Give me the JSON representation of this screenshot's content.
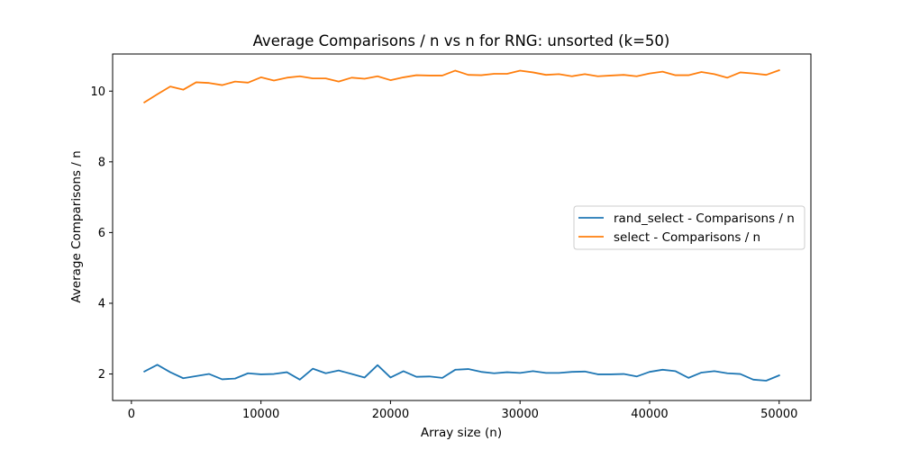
{
  "chart_data": {
    "type": "line",
    "title": "Average Comparisons / n vs n for RNG: unsorted (k=50)",
    "xlabel": "Array size (n)",
    "ylabel": "Average Comparisons / n",
    "xlim": [
      -1450,
      52450
    ],
    "ylim": [
      1.25,
      11.05
    ],
    "xticks": [
      0,
      10000,
      20000,
      30000,
      40000,
      50000
    ],
    "xtick_labels": [
      "0",
      "10000",
      "20000",
      "30000",
      "40000",
      "50000"
    ],
    "yticks": [
      2,
      4,
      6,
      8,
      10
    ],
    "ytick_labels": [
      "2",
      "4",
      "6",
      "8",
      "10"
    ],
    "grid": false,
    "legend_position": "center-right",
    "x": [
      1000,
      2000,
      3000,
      4000,
      5000,
      6000,
      7000,
      8000,
      9000,
      10000,
      11000,
      12000,
      13000,
      14000,
      15000,
      16000,
      17000,
      18000,
      19000,
      20000,
      21000,
      22000,
      23000,
      24000,
      25000,
      26000,
      27000,
      28000,
      29000,
      30000,
      31000,
      32000,
      33000,
      34000,
      35000,
      36000,
      37000,
      38000,
      39000,
      40000,
      41000,
      42000,
      43000,
      44000,
      45000,
      46000,
      47000,
      48000,
      49000,
      50000
    ],
    "series": [
      {
        "name": "rand_select - Comparisons / n",
        "color": "#1f77b4",
        "values": [
          2.07,
          2.26,
          2.05,
          1.88,
          1.94,
          2.0,
          1.85,
          1.87,
          2.02,
          1.99,
          2.0,
          2.05,
          1.84,
          2.15,
          2.02,
          2.1,
          2.0,
          1.9,
          2.25,
          1.9,
          2.08,
          1.92,
          1.93,
          1.89,
          2.12,
          2.14,
          2.06,
          2.02,
          2.05,
          2.03,
          2.08,
          2.03,
          2.03,
          2.06,
          2.07,
          1.99,
          1.99,
          2.0,
          1.93,
          2.06,
          2.12,
          2.08,
          1.89,
          2.04,
          2.08,
          2.02,
          2.0,
          1.84,
          1.81,
          1.96
        ]
      },
      {
        "name": "select - Comparisons / n",
        "color": "#ff7f0e",
        "values": [
          9.68,
          9.91,
          10.13,
          10.04,
          10.25,
          10.23,
          10.17,
          10.27,
          10.24,
          10.39,
          10.3,
          10.38,
          10.42,
          10.36,
          10.36,
          10.27,
          10.38,
          10.35,
          10.42,
          10.31,
          10.39,
          10.45,
          10.44,
          10.44,
          10.58,
          10.46,
          10.45,
          10.49,
          10.49,
          10.58,
          10.53,
          10.46,
          10.48,
          10.42,
          10.48,
          10.42,
          10.44,
          10.46,
          10.42,
          10.5,
          10.55,
          10.45,
          10.45,
          10.54,
          10.48,
          10.38,
          10.53,
          10.5,
          10.46,
          10.59
        ]
      }
    ]
  }
}
